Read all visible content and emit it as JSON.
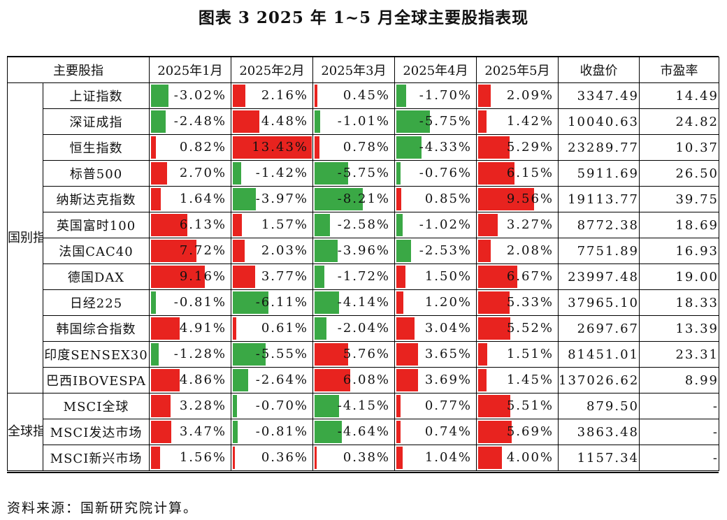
{
  "title": "图表 3  2025 年 1~5 月全球主要股指表现",
  "source": "资料来源：国新研究院计算。",
  "colors": {
    "positive": "#e8231f",
    "negative": "#3aa845"
  },
  "headers": [
    "主要股指",
    "2025年1月",
    "2025年2月",
    "2025年3月",
    "2025年4月",
    "2025年5月",
    "收盘价",
    "市盈率"
  ],
  "groups": [
    {
      "label": "国别指数",
      "rows": [
        {
          "name": "上证指数",
          "m": [
            -3.02,
            2.16,
            0.45,
            -1.7,
            2.09
          ],
          "close": "3347.49",
          "pe": "14.49"
        },
        {
          "name": "深证成指",
          "m": [
            -2.48,
            4.48,
            -1.01,
            -5.75,
            1.42
          ],
          "close": "10040.63",
          "pe": "24.82"
        },
        {
          "name": "恒生指数",
          "m": [
            0.82,
            13.43,
            0.78,
            -4.33,
            5.29
          ],
          "close": "23289.77",
          "pe": "10.37"
        },
        {
          "name": "标普500",
          "m": [
            2.7,
            -1.42,
            -5.75,
            -0.76,
            6.15
          ],
          "close": "5911.69",
          "pe": "26.50"
        },
        {
          "name": "纳斯达克指数",
          "m": [
            1.64,
            -3.97,
            -8.21,
            0.85,
            9.56
          ],
          "close": "19113.77",
          "pe": "39.75"
        },
        {
          "name": "英国富时100",
          "m": [
            6.13,
            1.57,
            -2.58,
            -1.02,
            3.27
          ],
          "close": "8772.38",
          "pe": "18.69"
        },
        {
          "name": "法国CAC40",
          "m": [
            7.72,
            2.03,
            -3.96,
            -2.53,
            2.08
          ],
          "close": "7751.89",
          "pe": "16.93"
        },
        {
          "name": "德国DAX",
          "m": [
            9.16,
            3.77,
            -1.72,
            1.5,
            6.67
          ],
          "close": "23997.48",
          "pe": "19.00"
        },
        {
          "name": "日经225",
          "m": [
            -0.81,
            -6.11,
            -4.14,
            1.2,
            5.33
          ],
          "close": "37965.10",
          "pe": "18.33"
        },
        {
          "name": "韩国综合指数",
          "m": [
            4.91,
            0.61,
            -2.04,
            3.04,
            5.52
          ],
          "close": "2697.67",
          "pe": "13.39"
        },
        {
          "name": "印度SENSEX30",
          "m": [
            -1.28,
            -5.55,
            5.76,
            3.65,
            1.51
          ],
          "close": "81451.01",
          "pe": "23.31"
        },
        {
          "name": "巴西IBOVESPA",
          "m": [
            4.86,
            -2.64,
            6.08,
            3.69,
            1.45
          ],
          "close": "137026.62",
          "pe": "8.99"
        }
      ]
    },
    {
      "label": "全球指数",
      "rows": [
        {
          "name": "MSCI全球",
          "m": [
            3.28,
            -0.7,
            -4.15,
            0.77,
            5.51
          ],
          "close": "879.50",
          "pe": "-"
        },
        {
          "name": "MSCI发达市场",
          "m": [
            3.47,
            -0.81,
            -4.64,
            0.74,
            5.69
          ],
          "close": "3863.48",
          "pe": "-"
        },
        {
          "name": "MSCI新兴市场",
          "m": [
            1.56,
            0.36,
            0.38,
            1.04,
            4.0
          ],
          "close": "1157.34",
          "pe": "-"
        }
      ]
    }
  ]
}
